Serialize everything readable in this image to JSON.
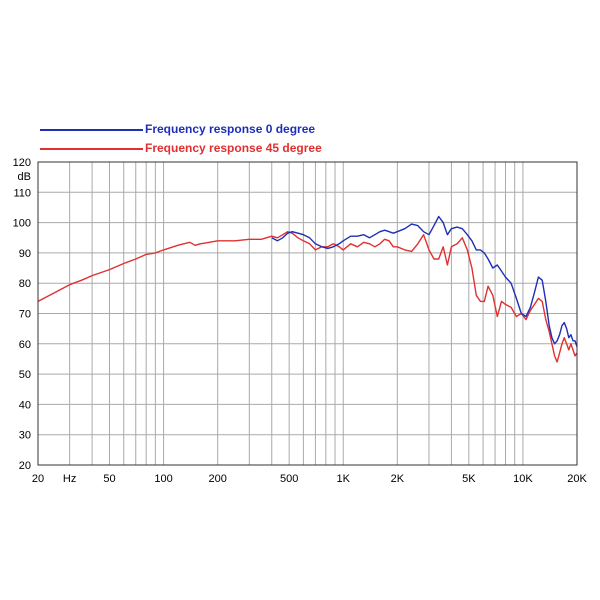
{
  "chart_data": {
    "type": "line",
    "title": "",
    "xlabel": "",
    "ylabel": "dB",
    "x_scale": "log",
    "xlim": [
      20,
      20000
    ],
    "ylim": [
      20,
      120
    ],
    "y_ticks": [
      20,
      30,
      40,
      50,
      60,
      70,
      80,
      90,
      100,
      110,
      120
    ],
    "x_tick_labels": [
      {
        "x": 20,
        "label": "20"
      },
      {
        "x": 30,
        "label": "Hz"
      },
      {
        "x": 50,
        "label": "50"
      },
      {
        "x": 100,
        "label": "100"
      },
      {
        "x": 200,
        "label": "200"
      },
      {
        "x": 500,
        "label": "500"
      },
      {
        "x": 1000,
        "label": "1K"
      },
      {
        "x": 2000,
        "label": "2K"
      },
      {
        "x": 5000,
        "label": "5K"
      },
      {
        "x": 10000,
        "label": "10K"
      },
      {
        "x": 20000,
        "label": "20K"
      }
    ],
    "grid": true,
    "legend_position": "top-left above plot",
    "series": [
      {
        "name": "Frequency response 0 degree",
        "color": "#1f2fb5",
        "x": [
          400,
          430,
          460,
          490,
          520,
          560,
          600,
          650,
          700,
          760,
          820,
          880,
          950,
          1000,
          1100,
          1200,
          1300,
          1400,
          1500,
          1600,
          1700,
          1800,
          1900,
          2000,
          2200,
          2400,
          2600,
          2800,
          3000,
          3200,
          3400,
          3600,
          3800,
          4000,
          4300,
          4600,
          4900,
          5200,
          5500,
          5800,
          6100,
          6400,
          6800,
          7200,
          7600,
          8000,
          8600,
          9200,
          9800,
          10400,
          11000,
          11600,
          12200,
          12800,
          13400,
          14000,
          14500,
          15000,
          15500,
          16000,
          16500,
          17000,
          17500,
          18000,
          18500,
          19000,
          19500,
          20000
        ],
        "y": [
          95,
          94,
          95,
          96.5,
          97,
          96.5,
          96,
          95,
          93,
          92,
          91.5,
          92,
          93,
          94,
          95.5,
          95.5,
          96,
          95,
          96,
          97,
          97.5,
          97,
          96.5,
          97,
          98,
          99.5,
          99,
          97,
          96,
          99,
          102,
          100,
          96,
          98,
          98.5,
          98,
          96,
          94,
          91,
          91,
          90,
          88,
          85,
          86,
          84,
          82,
          80,
          75,
          70,
          69,
          72,
          77,
          82,
          81,
          74,
          66,
          62,
          60,
          61,
          63,
          66,
          67,
          65,
          62,
          63,
          61,
          61,
          59
        ]
      },
      {
        "name": "Frequency response 45 degree",
        "color": "#e03030",
        "x": [
          20,
          25,
          30,
          35,
          40,
          50,
          60,
          70,
          80,
          90,
          100,
          120,
          140,
          150,
          160,
          180,
          200,
          250,
          300,
          350,
          400,
          430,
          460,
          490,
          520,
          560,
          600,
          650,
          700,
          760,
          820,
          880,
          950,
          1000,
          1100,
          1200,
          1300,
          1400,
          1500,
          1600,
          1700,
          1800,
          1900,
          2000,
          2200,
          2400,
          2600,
          2800,
          3000,
          3200,
          3400,
          3600,
          3800,
          4000,
          4300,
          4600,
          4900,
          5200,
          5500,
          5800,
          6100,
          6400,
          6800,
          7200,
          7600,
          8000,
          8600,
          9200,
          9800,
          10400,
          11000,
          11600,
          12200,
          12800,
          13400,
          14000,
          14500,
          15000,
          15500,
          16000,
          16500,
          17000,
          17500,
          18000,
          18500,
          19000,
          19500,
          20000
        ],
        "y": [
          74,
          77,
          79.5,
          81,
          82.5,
          84.5,
          86.5,
          88,
          89.5,
          90,
          91,
          92.5,
          93.5,
          92.5,
          93,
          93.5,
          94,
          94,
          94.5,
          94.5,
          95.5,
          95,
          96,
          97,
          96.5,
          95,
          94,
          93,
          91,
          92,
          92,
          93,
          92,
          91,
          93,
          92,
          93.5,
          93,
          92,
          93,
          94.5,
          94,
          92,
          92,
          91,
          90.5,
          93,
          96,
          91,
          88,
          88,
          92,
          86,
          92,
          93,
          95,
          91,
          85,
          76,
          74,
          74,
          79,
          76,
          69,
          74,
          73,
          72,
          69,
          70,
          68,
          71,
          73,
          75,
          74,
          68,
          64,
          60,
          56,
          54,
          57,
          60,
          62,
          60,
          58,
          60,
          58,
          56,
          57
        ]
      }
    ]
  }
}
